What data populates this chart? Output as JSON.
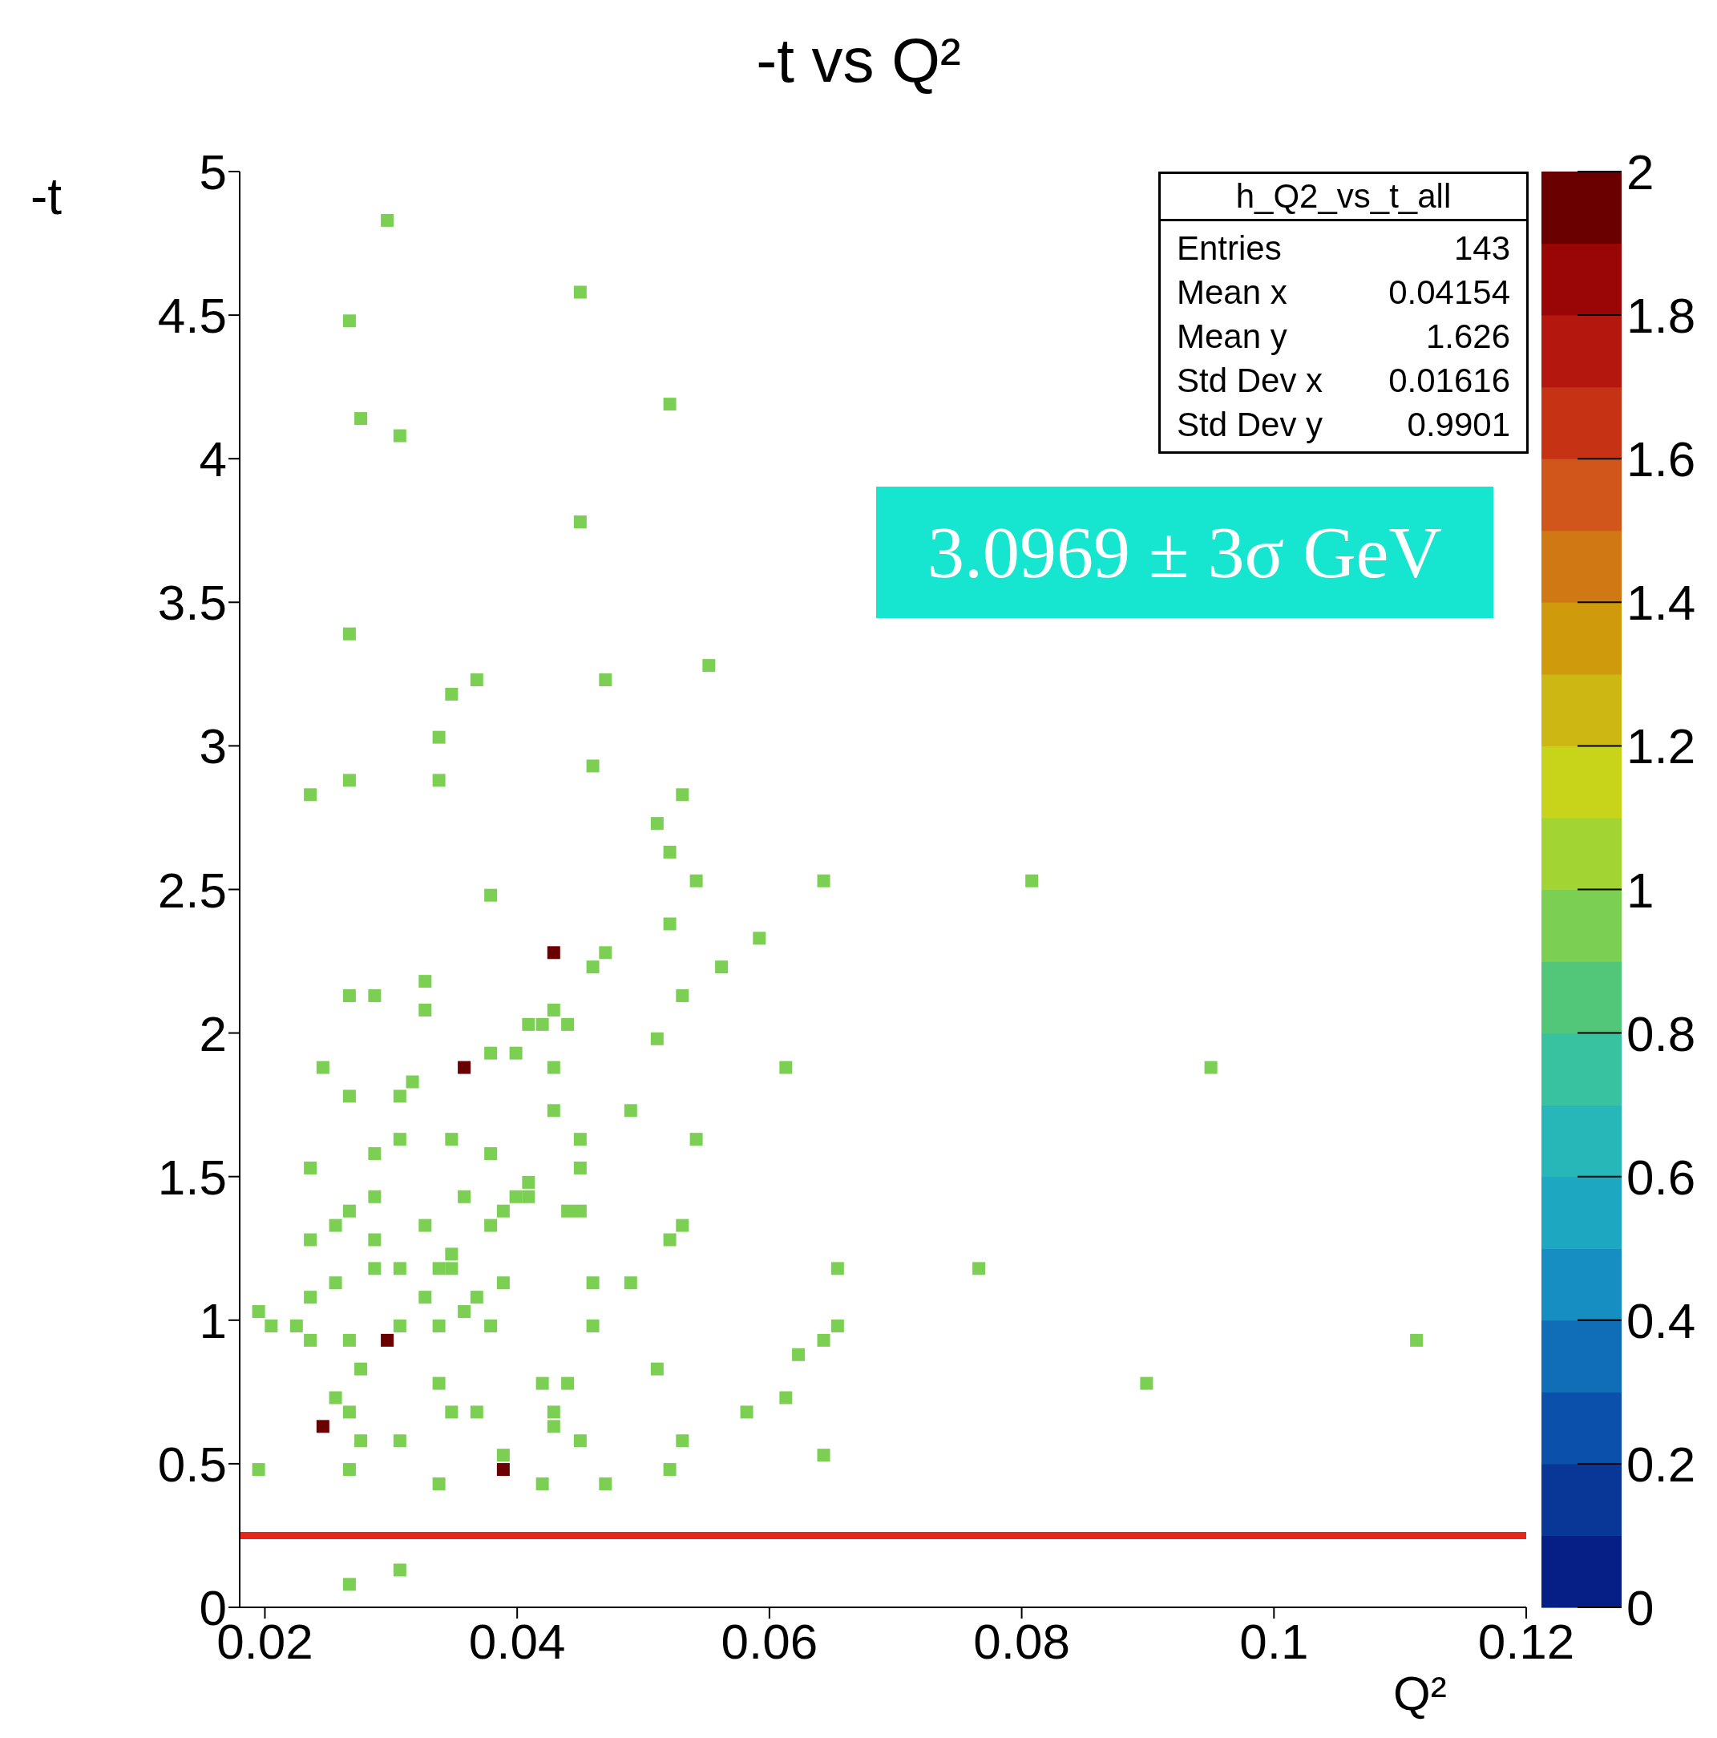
{
  "chart_data": {
    "type": "scatter",
    "title": "-t vs Q²",
    "xlabel": "Q²",
    "ylabel": "-t",
    "clabel": null,
    "x": [
      0.0297,
      0.045,
      0.0267,
      0.0276,
      0.0307,
      0.0521,
      0.045,
      0.0267,
      0.0552,
      0.0348,
      0.0368,
      0.047,
      0.0338,
      0.046,
      0.0236,
      0.0267,
      0.0338,
      0.0531,
      0.0511,
      0.0521,
      0.0542,
      0.0643,
      0.0808,
      0.0379,
      0.0521,
      0.0592,
      0.0429,
      0.047,
      0.046,
      0.0562,
      0.0327,
      0.0267,
      0.0287,
      0.0531,
      0.0327,
      0.0429,
      0.0409,
      0.042,
      0.044,
      0.0511,
      0.0379,
      0.0399,
      0.0246,
      0.0358,
      0.0429,
      0.0613,
      0.095,
      0.0317,
      0.0267,
      0.0307,
      0.0429,
      0.049,
      0.0307,
      0.0348,
      0.045,
      0.0542,
      0.0287,
      0.0379,
      0.0236,
      0.045,
      0.0409,
      0.0287,
      0.0358,
      0.0399,
      0.0409,
      0.0267,
      0.0389,
      0.044,
      0.045,
      0.0256,
      0.0327,
      0.0379,
      0.0531,
      0.0236,
      0.0287,
      0.0521,
      0.0348,
      0.0338,
      0.0348,
      0.0287,
      0.0307,
      0.0654,
      0.0766,
      0.0256,
      0.0389,
      0.046,
      0.049,
      0.0236,
      0.0327,
      0.0368,
      0.0195,
      0.0358,
      0.0205,
      0.0225,
      0.0307,
      0.0338,
      0.0379,
      0.046,
      0.0654,
      0.0236,
      0.0267,
      0.0297,
      0.0643,
      0.1113,
      0.0623,
      0.0276,
      0.0511,
      0.0338,
      0.042,
      0.044,
      0.0899,
      0.0256,
      0.0613,
      0.0267,
      0.0348,
      0.0368,
      0.0429,
      0.0582,
      0.0429,
      0.0246,
      0.0276,
      0.0307,
      0.045,
      0.0531,
      0.0389,
      0.0643,
      0.0195,
      0.0267,
      0.0389,
      0.0521,
      0.0338,
      0.042,
      0.047,
      0.0307,
      0.0267
    ],
    "values": [
      4.83,
      4.58,
      4.48,
      4.14,
      4.08,
      4.19,
      3.78,
      3.39,
      3.28,
      3.18,
      3.23,
      3.23,
      3.03,
      2.93,
      2.83,
      2.88,
      2.88,
      2.83,
      2.73,
      2.63,
      2.53,
      2.53,
      2.53,
      2.48,
      2.38,
      2.33,
      2.28,
      2.28,
      2.23,
      2.23,
      2.18,
      2.13,
      2.13,
      2.13,
      2.08,
      2.08,
      2.03,
      2.03,
      2.03,
      1.98,
      1.93,
      1.93,
      1.88,
      1.88,
      1.88,
      1.88,
      1.88,
      1.83,
      1.78,
      1.78,
      1.73,
      1.73,
      1.63,
      1.63,
      1.63,
      1.63,
      1.58,
      1.58,
      1.53,
      1.53,
      1.48,
      1.43,
      1.43,
      1.43,
      1.43,
      1.38,
      1.38,
      1.38,
      1.38,
      1.33,
      1.33,
      1.33,
      1.33,
      1.28,
      1.28,
      1.28,
      1.23,
      1.18,
      1.18,
      1.18,
      1.18,
      1.18,
      1.18,
      1.13,
      1.13,
      1.13,
      1.13,
      1.08,
      1.08,
      1.08,
      1.03,
      1.03,
      0.98,
      0.98,
      0.98,
      0.98,
      0.98,
      0.98,
      0.98,
      0.93,
      0.93,
      0.93,
      0.93,
      0.93,
      0.88,
      0.83,
      0.83,
      0.78,
      0.78,
      0.78,
      0.78,
      0.73,
      0.73,
      0.68,
      0.68,
      0.68,
      0.68,
      0.68,
      0.63,
      0.63,
      0.58,
      0.58,
      0.58,
      0.58,
      0.53,
      0.53,
      0.48,
      0.48,
      0.48,
      0.48,
      0.43,
      0.43,
      0.43,
      0.13,
      0.08
    ],
    "cvalues": [
      1,
      1,
      1,
      1,
      1,
      1,
      1,
      1,
      1,
      1,
      1,
      1,
      1,
      1,
      1,
      1,
      1,
      1,
      1,
      1,
      1,
      1,
      1,
      1,
      1,
      1,
      2,
      1,
      1,
      1,
      1,
      1,
      1,
      1,
      1,
      1,
      1,
      1,
      1,
      1,
      1,
      1,
      1,
      2,
      1,
      1,
      1,
      1,
      1,
      1,
      1,
      1,
      1,
      1,
      1,
      1,
      1,
      1,
      1,
      1,
      1,
      1,
      1,
      1,
      1,
      1,
      1,
      1,
      1,
      1,
      1,
      1,
      1,
      1,
      1,
      1,
      1,
      1,
      1,
      1,
      1,
      1,
      1,
      1,
      1,
      1,
      1,
      1,
      1,
      1,
      1,
      1,
      1,
      1,
      1,
      1,
      1,
      1,
      1,
      1,
      1,
      2,
      1,
      1,
      1,
      1,
      1,
      1,
      1,
      1,
      1,
      1,
      1,
      1,
      1,
      1,
      1,
      1,
      1,
      2,
      1,
      1,
      1,
      1,
      1,
      1,
      1,
      1,
      2,
      1,
      1,
      1,
      1,
      1,
      1
    ],
    "marker": "square",
    "xlim": [
      0.018,
      0.12
    ],
    "xticks": [
      0.02,
      0.04,
      0.06,
      0.08,
      0.1,
      0.12
    ],
    "ylim": [
      0,
      5
    ],
    "yticks": [
      0,
      0.5,
      1,
      1.5,
      2,
      2.5,
      3,
      3.5,
      4,
      4.5,
      5
    ],
    "clim": [
      0,
      2
    ],
    "cticks": [
      0,
      0.2,
      0.4,
      0.6,
      0.8,
      1,
      1.2,
      1.4,
      1.6,
      1.8,
      2
    ],
    "ref_lines": [
      {
        "axis": "y",
        "value": 0.25,
        "color": "#e8271b"
      }
    ],
    "annotations": [
      "h_Q2_vs_t_all",
      "Entries",
      "143",
      "Mean x",
      "0.04154",
      "Mean y",
      "1.626",
      "Std Dev x",
      "0.01616",
      "Std Dev y",
      "0.9901",
      "3.0969 ± 3σ GeV"
    ]
  }
}
